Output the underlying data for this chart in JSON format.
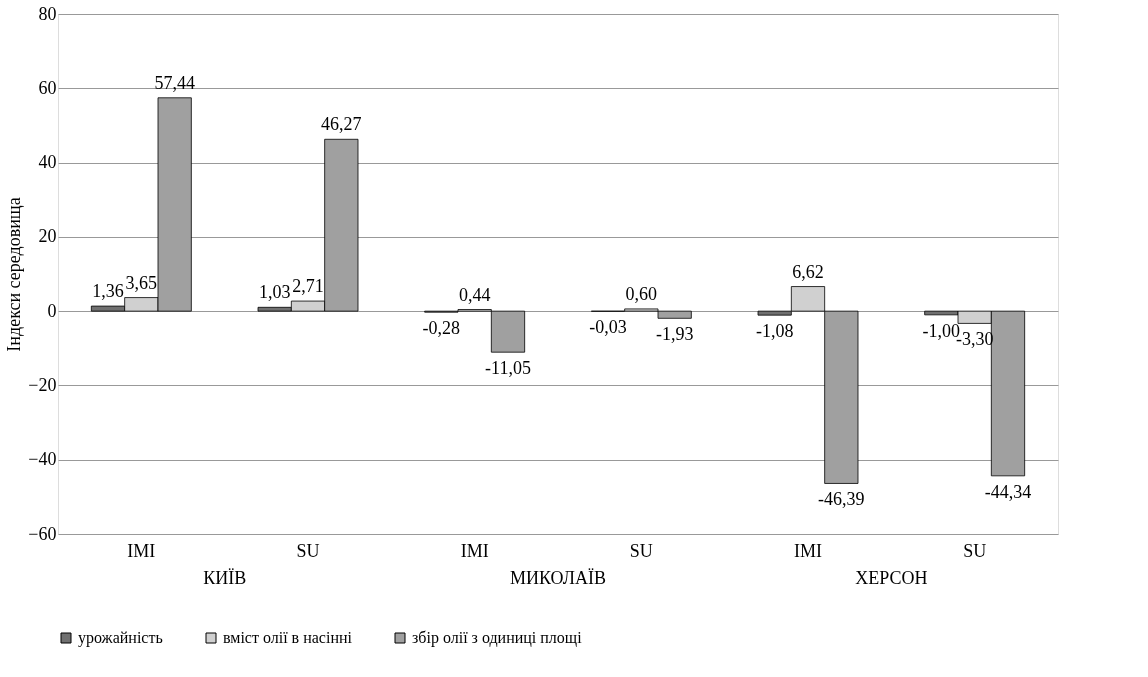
{
  "chart_data": {
    "type": "bar",
    "ylabel": "Індекси середовища",
    "categories": [
      "IMI",
      "SU",
      "IMI",
      "SU",
      "IMI",
      "SU"
    ],
    "series": [
      {
        "name": "урожайність",
        "color": "#707070",
        "values": [
          1.36,
          1.03,
          -0.28,
          -0.03,
          -1.08,
          -1.0
        ]
      },
      {
        "name": "вміст олії в насінні",
        "color": "#d0d0d0",
        "values": [
          3.65,
          2.71,
          0.44,
          0.6,
          6.62,
          -3.3
        ]
      },
      {
        "name": "збір олії з одиниці площі",
        "color": "#a0a0a0",
        "values": [
          57.44,
          46.27,
          -11.05,
          -1.93,
          -46.39,
          -44.34
        ]
      }
    ],
    "value_labels": [
      [
        "1,36",
        "1,03",
        "-0,28",
        "-0,03",
        "-1,08",
        "-1,00"
      ],
      [
        "3,65",
        "2,71",
        "0,44",
        "0,60",
        "6,62",
        "-3,30"
      ],
      [
        "57,44",
        "46,27",
        "-11,05",
        "-1,93",
        "-46,39",
        "-44,34"
      ]
    ],
    "annotations": [
      "КИЇВ",
      "МИКОЛАЇВ",
      "ХЕРСОН"
    ],
    "ylim": [
      -60,
      80
    ],
    "yticks": [
      -60,
      -40,
      -20,
      0,
      20,
      40,
      60,
      80
    ],
    "grid": "y",
    "legend": "bottom"
  }
}
